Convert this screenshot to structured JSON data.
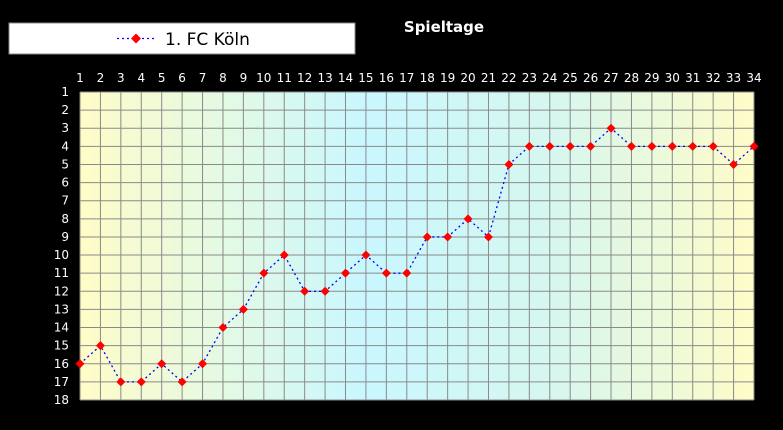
{
  "chart_data": {
    "type": "line",
    "title": "Spieltage",
    "x": [
      1,
      2,
      3,
      4,
      5,
      6,
      7,
      8,
      9,
      10,
      11,
      12,
      13,
      14,
      15,
      16,
      17,
      18,
      19,
      20,
      21,
      22,
      23,
      24,
      25,
      26,
      27,
      28,
      29,
      30,
      31,
      32,
      33,
      34
    ],
    "y_ticks": [
      1,
      2,
      3,
      4,
      5,
      6,
      7,
      8,
      9,
      10,
      11,
      12,
      13,
      14,
      15,
      16,
      17,
      18
    ],
    "ylim": [
      1,
      18
    ],
    "y_inverted": true,
    "x_axis_position": "top",
    "grid": true,
    "legend_position": "top-left",
    "series": [
      {
        "name": "1. FC Köln",
        "color": "#ff0000",
        "line_color": "#0000ff",
        "line_style": "dotted",
        "marker": "diamond",
        "values": [
          16,
          15,
          17,
          17,
          16,
          17,
          16,
          14,
          13,
          11,
          10,
          12,
          12,
          11,
          10,
          11,
          11,
          9,
          9,
          8,
          9,
          5,
          4,
          4,
          4,
          4,
          3,
          4,
          4,
          4,
          4,
          4,
          5,
          4
        ]
      }
    ]
  }
}
